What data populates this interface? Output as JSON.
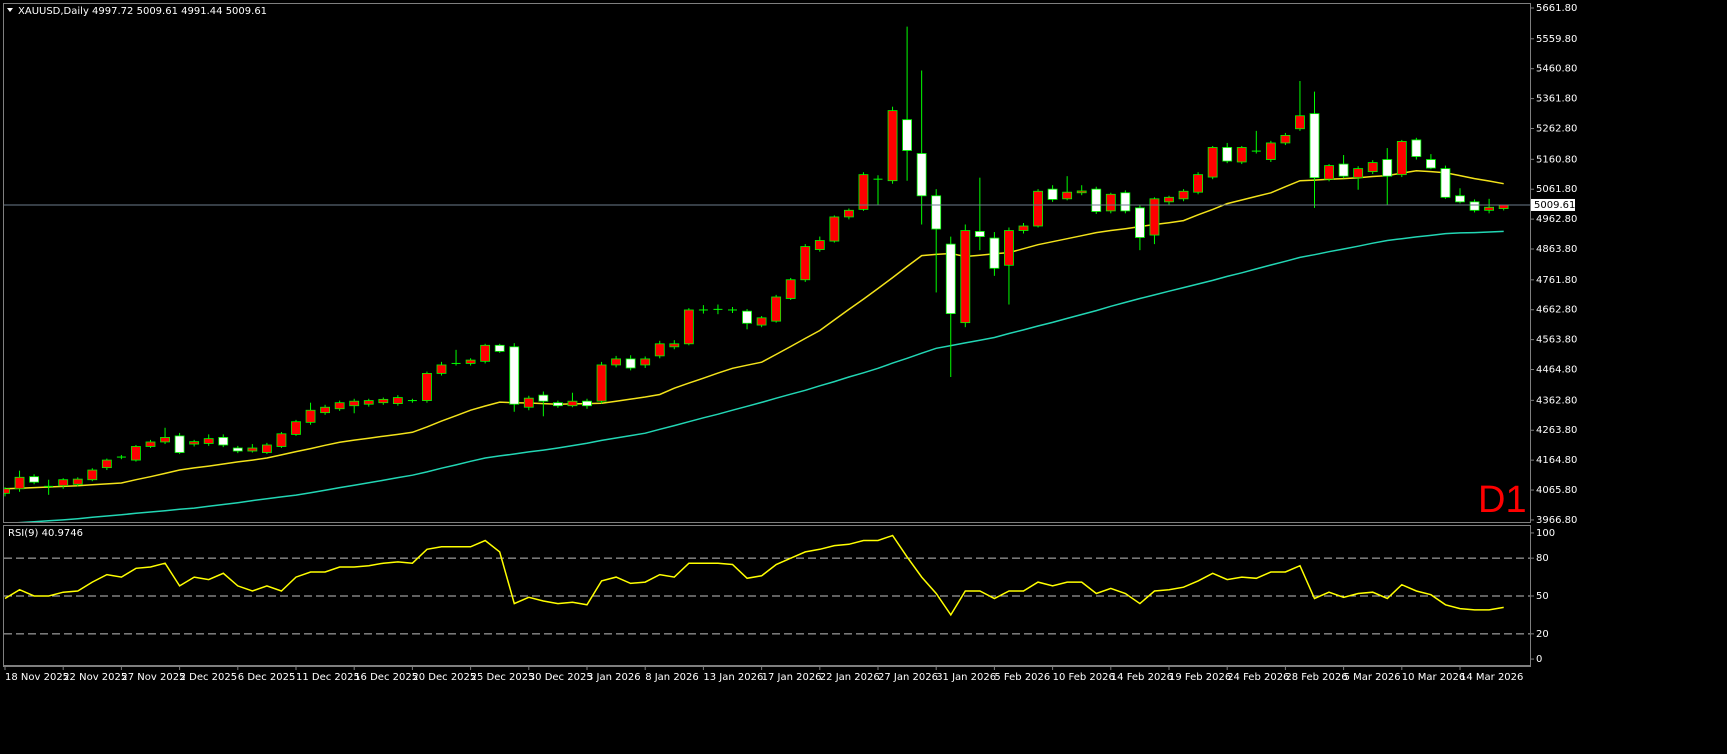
{
  "chart_data": [
    {
      "type": "candlestick",
      "symbol": "XAUUSD,Daily",
      "timeframe": "D1",
      "categories": [
        "18 Nov 2025",
        null,
        null,
        null,
        "22 Nov 2025",
        null,
        null,
        null,
        "27 Nov 2025",
        null,
        null,
        null,
        "2 Dec 2025",
        null,
        null,
        null,
        "6 Dec 2025",
        null,
        null,
        null,
        "11 Dec 2025",
        null,
        null,
        null,
        "16 Dec 2025",
        null,
        null,
        null,
        "20 Dec 2025",
        null,
        null,
        null,
        "25 Dec 2025",
        null,
        null,
        null,
        "30 Dec 2025",
        null,
        null,
        null,
        "3 Jan 2026",
        null,
        null,
        null,
        "8 Jan 2026",
        null,
        null,
        null,
        "13 Jan 2026",
        null,
        null,
        null,
        "17 Jan 2026",
        null,
        null,
        null,
        "22 Jan 2026",
        null,
        null,
        null,
        "27 Jan 2026",
        null,
        null,
        null,
        "31 Jan 2026",
        null,
        null,
        null,
        "5 Feb 2026",
        null,
        null,
        null,
        "10 Feb 2026",
        null,
        null,
        null,
        "14 Feb 2026",
        null,
        null,
        null,
        "19 Feb 2026",
        null,
        null,
        null,
        "24 Feb 2026",
        null,
        null,
        null,
        "28 Feb 2026",
        null,
        null,
        null,
        "5 Mar 2026",
        null,
        null,
        null,
        "10 Mar 2026",
        null,
        null,
        null,
        "14 Mar 2026",
        null,
        null,
        null
      ],
      "open": [
        4055,
        4070,
        4110,
        4078,
        4080,
        4085,
        4100,
        4140,
        4175,
        4165,
        4210,
        4225,
        4245,
        4218,
        4220,
        4240,
        4205,
        4195,
        4190,
        4210,
        4250,
        4290,
        4322,
        4335,
        4345,
        4350,
        4355,
        4352,
        4362,
        4362,
        4452,
        4485,
        4485,
        4492,
        4545,
        4540,
        4340,
        4380,
        4355,
        4345,
        4360,
        4360,
        4480,
        4500,
        4480,
        4510,
        4540,
        4550,
        4662,
        4664,
        4662,
        4658,
        4612,
        4625,
        4700,
        4762,
        4862,
        4890,
        4970,
        4995,
        5095,
        5090,
        5292,
        5180,
        5040,
        4880,
        4620,
        4922,
        4900,
        4810,
        4925,
        4940,
        5062,
        5030,
        5050,
        5062,
        4990,
        5050,
        5000,
        4910,
        5020,
        5030,
        5052,
        5102,
        5200,
        5152,
        5188,
        5160,
        5215,
        5262,
        5312,
        5095,
        5145,
        5100,
        5120,
        5160,
        5110,
        5225,
        5160,
        5130,
        5040,
        5020,
        4992,
        4997.72
      ],
      "high": [
        4075,
        4130,
        4118,
        4100,
        4105,
        4108,
        4138,
        4170,
        4182,
        4215,
        4232,
        4272,
        4255,
        4232,
        4250,
        4250,
        4212,
        4218,
        4222,
        4258,
        4298,
        4355,
        4348,
        4362,
        4368,
        4368,
        4372,
        4380,
        4368,
        4458,
        4490,
        4530,
        4502,
        4550,
        4550,
        4552,
        4378,
        4392,
        4362,
        4388,
        4368,
        4490,
        4510,
        4512,
        4508,
        4560,
        4562,
        4668,
        4678,
        4680,
        4672,
        4665,
        4642,
        4712,
        4768,
        4880,
        4905,
        4975,
        4998,
        5118,
        5108,
        5335,
        5600,
        5455,
        5062,
        4905,
        4945,
        5100,
        4920,
        4935,
        4950,
        5062,
        5075,
        5105,
        5075,
        5070,
        5050,
        5058,
        5010,
        5035,
        5040,
        5062,
        5118,
        5205,
        5215,
        5205,
        5255,
        5222,
        5248,
        5420,
        5385,
        5145,
        5175,
        5138,
        5158,
        5198,
        5225,
        5232,
        5178,
        5140,
        5065,
        5028,
        5030,
        5009.61
      ],
      "low": [
        4045,
        4060,
        4085,
        4050,
        4070,
        4078,
        4095,
        4132,
        4168,
        4160,
        4205,
        4218,
        4185,
        4210,
        4212,
        4208,
        4188,
        4190,
        4185,
        4205,
        4245,
        4282,
        4315,
        4328,
        4320,
        4342,
        4348,
        4345,
        4355,
        4355,
        4445,
        4478,
        4478,
        4485,
        4520,
        4325,
        4330,
        4310,
        4338,
        4340,
        4335,
        4352,
        4472,
        4462,
        4470,
        4502,
        4532,
        4545,
        4650,
        4648,
        4652,
        4598,
        4605,
        4620,
        4695,
        4755,
        4855,
        4885,
        4962,
        4990,
        5010,
        5080,
        5090,
        4945,
        4720,
        4440,
        4605,
        4860,
        4775,
        4680,
        4915,
        4935,
        5020,
        5025,
        5042,
        4980,
        4982,
        4982,
        4860,
        4880,
        5010,
        5022,
        5045,
        5095,
        5148,
        5145,
        5180,
        5152,
        5208,
        5255,
        5000,
        5088,
        5098,
        5060,
        5112,
        5010,
        5102,
        5160,
        5128,
        5030,
        5015,
        4985,
        4982,
        4991.44
      ],
      "close": [
        4070,
        4108,
        4092,
        4078,
        4100,
        4102,
        4132,
        4165,
        4175,
        4210,
        4225,
        4240,
        4190,
        4226,
        4236,
        4215,
        4195,
        4205,
        4215,
        4252,
        4292,
        4330,
        4340,
        4355,
        4360,
        4362,
        4366,
        4372,
        4362,
        4452,
        4480,
        4485,
        4496,
        4545,
        4525,
        4350,
        4370,
        4360,
        4345,
        4360,
        4345,
        4480,
        4500,
        4470,
        4500,
        4550,
        4550,
        4662,
        4662,
        4664,
        4662,
        4618,
        4636,
        4705,
        4762,
        4872,
        4892,
        4970,
        4992,
        5110,
        5095,
        5322,
        5190,
        5040,
        4930,
        4650,
        4925,
        4905,
        4800,
        4925,
        4940,
        5055,
        5028,
        5052,
        5056,
        4988,
        5045,
        4990,
        4902,
        5030,
        5035,
        5055,
        5110,
        5200,
        5155,
        5200,
        5188,
        5215,
        5240,
        5305,
        5100,
        5140,
        5105,
        5130,
        5150,
        5105,
        5220,
        5170,
        5132,
        5035,
        5020,
        4992,
        5002,
        5009.61
      ],
      "colors": {
        "up": "#ff0000",
        "down": "#ffffff",
        "wick": "#00ff00",
        "price_line": "#6c7b8b"
      },
      "lines": [
        {
          "color": "#f2e21a",
          "values": [
            4070,
            4072,
            4074,
            4076,
            4078,
            4080,
            4083,
            4086,
            4089,
            4100,
            4110,
            4121,
            4132,
            4139,
            4145,
            4152,
            4159,
            4165,
            4172,
            4182,
            4193,
            4203,
            4214,
            4224,
            4231,
            4237,
            4244,
            4250,
            4257,
            4275,
            4294,
            4312,
            4330,
            4344,
            4357,
            4355,
            4354,
            4352,
            4350,
            4351,
            4352,
            4353,
            4360,
            4367,
            4374,
            4382,
            4403,
            4420,
            4436,
            4453,
            4469,
            4479,
            4489,
            4515,
            4541,
            4568,
            4594,
            4629,
            4664,
            4698,
            4733,
            4769,
            4806,
            4842,
            4846,
            4849,
            4839,
            4843,
            4848,
            4852,
            4865,
            4878,
            4888,
            4898,
            4908,
            4918,
            4925,
            4931,
            4938,
            4945,
            4951,
            4958,
            4977,
            4995,
            5014,
            5026,
            5038,
            5050,
            5070,
            5090,
            5092,
            5095,
            5097,
            5100,
            5104,
            5107,
            5115,
            5123,
            5120,
            5116,
            5107,
            5097,
            5089,
            5080
          ]
        },
        {
          "color": "#22d6b4",
          "values": [
            3955,
            3958,
            3961,
            3964,
            3967,
            3971,
            3976,
            3980,
            3984,
            3989,
            3993,
            3997,
            4002,
            4006,
            4012,
            4018,
            4024,
            4031,
            4037,
            4043,
            4049,
            4057,
            4065,
            4074,
            4082,
            4090,
            4098,
            4107,
            4115,
            4126,
            4138,
            4149,
            4161,
            4172,
            4179,
            4185,
            4192,
            4198,
            4205,
            4213,
            4221,
            4230,
            4238,
            4246,
            4254,
            4267,
            4279,
            4292,
            4305,
            4317,
            4330,
            4343,
            4356,
            4370,
            4383,
            4396,
            4411,
            4425,
            4440,
            4454,
            4469,
            4486,
            4502,
            4519,
            4535,
            4544,
            4553,
            4562,
            4571,
            4584,
            4596,
            4609,
            4621,
            4634,
            4647,
            4660,
            4674,
            4687,
            4700,
            4712,
            4724,
            4736,
            4748,
            4760,
            4773,
            4785,
            4798,
            4811,
            4823,
            4836,
            4845,
            4855,
            4864,
            4873,
            4883,
            4892,
            4898,
            4904,
            4909,
            4915,
            4917,
            4918,
            4920,
            4922
          ]
        }
      ],
      "ylim": [
        3960,
        5675
      ],
      "yticks": [
        {
          "value": 5661.8,
          "label": "5661.80"
        },
        {
          "value": 5559.8,
          "label": "5559.80"
        },
        {
          "value": 5460.8,
          "label": "5460.80"
        },
        {
          "value": 5361.8,
          "label": "5361.80"
        },
        {
          "value": 5262.8,
          "label": "5262.80"
        },
        {
          "value": 5160.8,
          "label": "5160.80"
        },
        {
          "value": 5061.8,
          "label": "5061.80"
        },
        {
          "value": 4962.8,
          "label": "4962.80"
        },
        {
          "value": 4863.8,
          "label": "4863.80"
        },
        {
          "value": 4761.8,
          "label": "4761.80"
        },
        {
          "value": 4662.8,
          "label": "4662.80"
        },
        {
          "value": 4563.8,
          "label": "4563.80"
        },
        {
          "value": 4464.8,
          "label": "4464.80"
        },
        {
          "value": 4362.8,
          "label": "4362.80"
        },
        {
          "value": 4263.8,
          "label": "4263.80"
        },
        {
          "value": 4164.8,
          "label": "4164.80"
        },
        {
          "value": 4065.8,
          "label": "4065.80"
        },
        {
          "value": 3966.8,
          "label": "3966.80"
        }
      ]
    },
    {
      "type": "line",
      "title": "RSI(9)",
      "color": "#ffff00",
      "grid": "dashed",
      "values": [
        48,
        55,
        50,
        50,
        53,
        54,
        61,
        67,
        65,
        72,
        73,
        76,
        58,
        65,
        63,
        68,
        58,
        54,
        58,
        54,
        65,
        69,
        69,
        73,
        73,
        74,
        76,
        77,
        76,
        87,
        89,
        89,
        89,
        94,
        85,
        44,
        49,
        46,
        44,
        45,
        43,
        62,
        65,
        60,
        61,
        67,
        65,
        76,
        76,
        76,
        75,
        64,
        66,
        75,
        80,
        85,
        87,
        90,
        91,
        94,
        94,
        98,
        81,
        65,
        52,
        35,
        54,
        54,
        48,
        54,
        54,
        61,
        58,
        61,
        61,
        52,
        56,
        52,
        44,
        54,
        55,
        57,
        62,
        68,
        63,
        65,
        64,
        69,
        69,
        74,
        48,
        53,
        49,
        52,
        53,
        48,
        59,
        54,
        51,
        43,
        40,
        39,
        39,
        40.9746
      ],
      "ylim": [
        -4.7,
        105.5
      ],
      "yticks": [
        100,
        80,
        50,
        20,
        0
      ]
    }
  ]
}
